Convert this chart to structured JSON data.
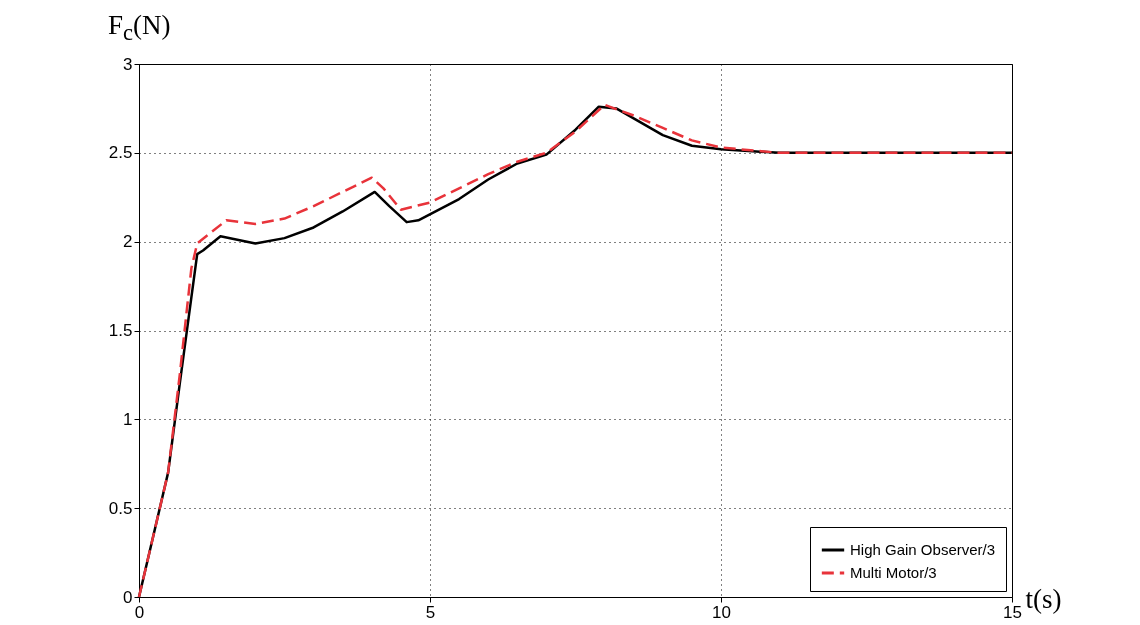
{
  "chart_data": {
    "type": "line",
    "xlabel": "t(s)",
    "ylabel": "F$_{c}$(N)",
    "xlim": [
      0,
      15
    ],
    "ylim": [
      0,
      3
    ],
    "xticks": [
      0,
      5,
      10,
      15
    ],
    "yticks": [
      0,
      0.5,
      1,
      1.5,
      2,
      2.5,
      3
    ],
    "grid": true,
    "legend": "bottom right",
    "series": [
      {
        "name": "High Gain Observer/3",
        "color": "#000000",
        "line_style": "solid",
        "x": [
          0,
          0.5,
          0.7,
          1.0,
          1.1,
          1.4,
          2,
          2.5,
          3,
          3.5,
          4.05,
          4.3,
          4.6,
          4.8,
          5.5,
          6,
          6.5,
          7,
          7.5,
          7.9,
          8.2,
          9,
          9.5,
          10,
          11,
          15
        ],
        "values": [
          0,
          0.7,
          1.2,
          1.93,
          1.95,
          2.03,
          1.99,
          2.02,
          2.08,
          2.17,
          2.28,
          2.2,
          2.11,
          2.12,
          2.24,
          2.35,
          2.44,
          2.49,
          2.63,
          2.76,
          2.75,
          2.6,
          2.54,
          2.52,
          2.5,
          2.5
        ]
      },
      {
        "name": "Multi Motor/3",
        "color": "#e8333a",
        "line_style": "dashed",
        "x": [
          0,
          0.5,
          0.7,
          0.9,
          1.0,
          1.5,
          2,
          2.5,
          3,
          3.5,
          4,
          4.2,
          4.5,
          5,
          5.5,
          6,
          6.5,
          7,
          7.5,
          8,
          8.5,
          9,
          9.5,
          10,
          11,
          15
        ],
        "values": [
          0,
          0.7,
          1.25,
          1.85,
          1.99,
          2.12,
          2.1,
          2.13,
          2.2,
          2.28,
          2.36,
          2.3,
          2.18,
          2.22,
          2.3,
          2.38,
          2.45,
          2.5,
          2.62,
          2.77,
          2.71,
          2.64,
          2.57,
          2.53,
          2.5,
          2.5
        ]
      }
    ]
  }
}
